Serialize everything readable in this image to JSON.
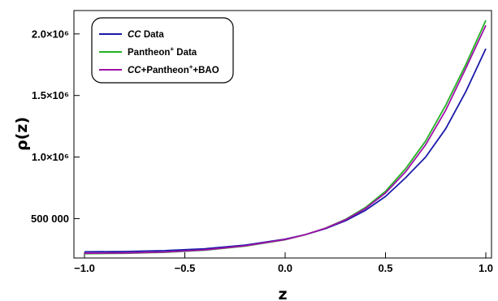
{
  "chart_data": {
    "type": "line",
    "title": "",
    "xlabel": "z",
    "ylabel": "ρ(z)",
    "xlim": [
      -1.0,
      1.0
    ],
    "ylim": [
      180000,
      2190000
    ],
    "grid": false,
    "legend_position": "top-left",
    "x_ticks": [
      {
        "value": -1.0,
        "label": "−1.0"
      },
      {
        "value": -0.5,
        "label": "−0.5"
      },
      {
        "value": 0.0,
        "label": "0.0"
      },
      {
        "value": 0.5,
        "label": "0.5"
      },
      {
        "value": 1.0,
        "label": "1.0"
      }
    ],
    "y_ticks": [
      {
        "value": 500000,
        "label": "500 000"
      },
      {
        "value": 1000000,
        "label": "1.0×10⁶"
      },
      {
        "value": 1500000,
        "label": "1.5×10⁶"
      },
      {
        "value": 2000000,
        "label": "2.0×10⁶"
      }
    ],
    "x": [
      -1.0,
      -0.8,
      -0.6,
      -0.4,
      -0.2,
      0.0,
      0.1,
      0.2,
      0.3,
      0.4,
      0.5,
      0.6,
      0.7,
      0.8,
      0.9,
      1.0
    ],
    "series": [
      {
        "name": "CC Data",
        "color": "#1a1aa8",
        "values": [
          230000,
          233000,
          240000,
          255000,
          285000,
          333000,
          370000,
          418000,
          482000,
          567000,
          680000,
          832000,
          1000000,
          1230000,
          1530000,
          1880000
        ]
      },
      {
        "name": "Pantheon⁺ Data",
        "color": "#22b322",
        "values": [
          215000,
          218000,
          226000,
          243000,
          276000,
          328000,
          369000,
          422000,
          493000,
          590000,
          722000,
          905000,
          1130000,
          1420000,
          1750000,
          2110000
        ]
      },
      {
        "name": "CC+Pantheon⁺+BAO",
        "color": "#a011a8",
        "values": [
          218000,
          221000,
          229000,
          246000,
          279000,
          330000,
          370000,
          421000,
          490000,
          582000,
          708000,
          880000,
          1100000,
          1380000,
          1720000,
          2070000
        ]
      }
    ]
  }
}
